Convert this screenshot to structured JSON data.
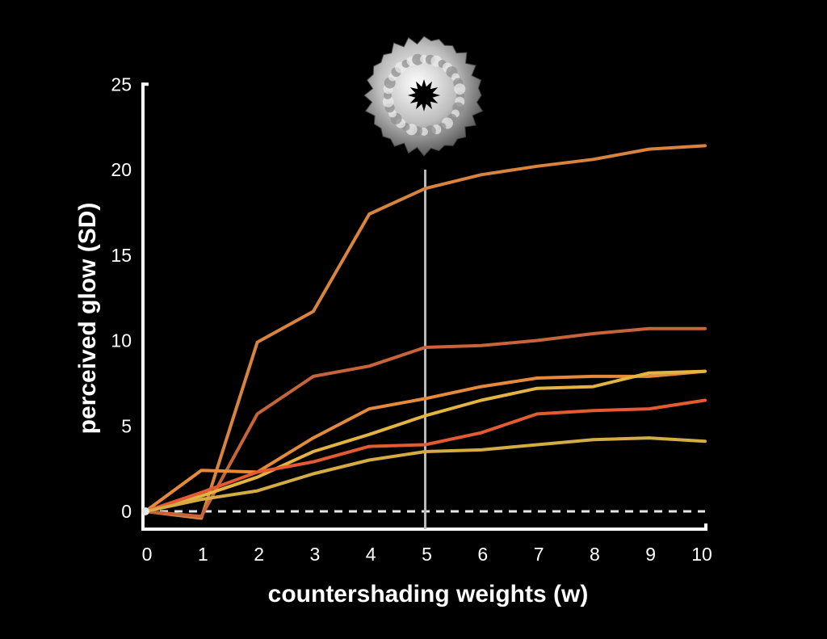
{
  "chart_data": {
    "type": "line",
    "title": "",
    "xlabel": "countershading weights (w)",
    "ylabel": "perceived glow (SD)",
    "xlim": [
      0,
      10
    ],
    "ylim": [
      -1,
      25
    ],
    "x_ticks": [
      "0",
      "1",
      "2",
      "3",
      "4",
      "5",
      "6",
      "7",
      "8",
      "9",
      "10"
    ],
    "y_ticks": [
      "0",
      "5",
      "10",
      "15",
      "20",
      "25"
    ],
    "x": [
      0,
      1,
      2,
      3,
      4,
      5,
      6,
      7,
      8,
      9,
      10
    ],
    "reference_lines": {
      "vertical_x": 5,
      "horizontal_dashed_y": 0
    },
    "series": [
      {
        "color": "#d8843e",
        "values": [
          0,
          -0.4,
          9.9,
          11.7,
          17.4,
          18.9,
          19.7,
          20.2,
          20.6,
          21.2,
          21.4
        ]
      },
      {
        "color": "#c8643a",
        "values": [
          0,
          -0.3,
          5.7,
          7.9,
          8.5,
          9.6,
          9.7,
          10.0,
          10.4,
          10.7,
          10.7
        ]
      },
      {
        "color": "#e58a3a",
        "values": [
          0,
          2.4,
          2.3,
          4.3,
          6.0,
          6.6,
          7.3,
          7.8,
          7.9,
          7.9,
          8.2
        ]
      },
      {
        "color": "#e3b440",
        "values": [
          0,
          0.9,
          2.0,
          3.5,
          4.5,
          5.6,
          6.5,
          7.2,
          7.3,
          8.1,
          8.2
        ]
      },
      {
        "color": "#e35a33",
        "values": [
          0,
          1.1,
          2.3,
          2.9,
          3.8,
          3.9,
          4.6,
          5.7,
          5.9,
          6.0,
          6.5
        ]
      },
      {
        "color": "#d4ac44",
        "values": [
          0,
          0.7,
          1.2,
          2.2,
          3.0,
          3.5,
          3.6,
          3.9,
          4.2,
          4.3,
          4.1
        ]
      }
    ]
  }
}
